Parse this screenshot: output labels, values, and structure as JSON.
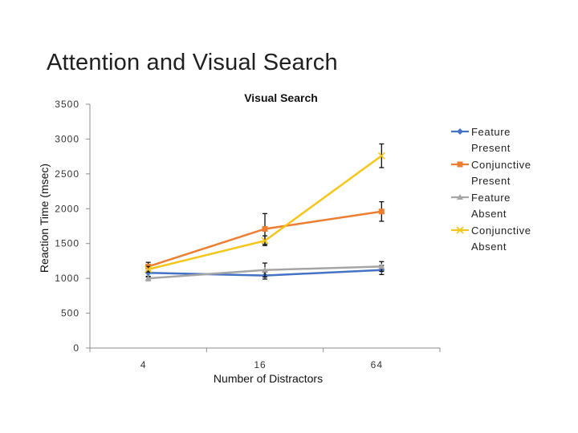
{
  "slide": {
    "title": "Attention and Visual Search"
  },
  "chart_data": {
    "type": "line",
    "title": "Visual Search",
    "xlabel": "Number of Distractors",
    "ylabel": "Reaction Time (msec)",
    "categories": [
      "4",
      "16",
      "64"
    ],
    "ylim": [
      0,
      3500
    ],
    "yticks": [
      0,
      500,
      1000,
      1500,
      2000,
      2500,
      3000,
      3500
    ],
    "grid": false,
    "legend_position": "right",
    "series": [
      {
        "name": "Feature Present",
        "legend_lines": [
          "Feature",
          "Present"
        ],
        "color": "#4472c4",
        "marker": "diamond",
        "values": [
          1080,
          1040,
          1120
        ],
        "errors": [
          60,
          50,
          65
        ]
      },
      {
        "name": "Conjunctive Present",
        "legend_lines": [
          "Conjunctive",
          "Present"
        ],
        "color": "#ed7d31",
        "marker": "square",
        "values": [
          1170,
          1710,
          1960
        ],
        "errors": [
          60,
          220,
          140
        ]
      },
      {
        "name": "Feature Absent",
        "legend_lines": [
          "Feature",
          "Absent"
        ],
        "color": "#a5a5a5",
        "marker": "triangle",
        "values": [
          1000,
          1120,
          1170
        ],
        "errors": [
          30,
          100,
          70
        ]
      },
      {
        "name": "Conjunctive Absent",
        "legend_lines": [
          "Conjunctive",
          "Absent"
        ],
        "color": "#f5c518",
        "marker": "x",
        "values": [
          1130,
          1540,
          2760
        ],
        "errors": [
          40,
          70,
          170
        ]
      }
    ]
  }
}
